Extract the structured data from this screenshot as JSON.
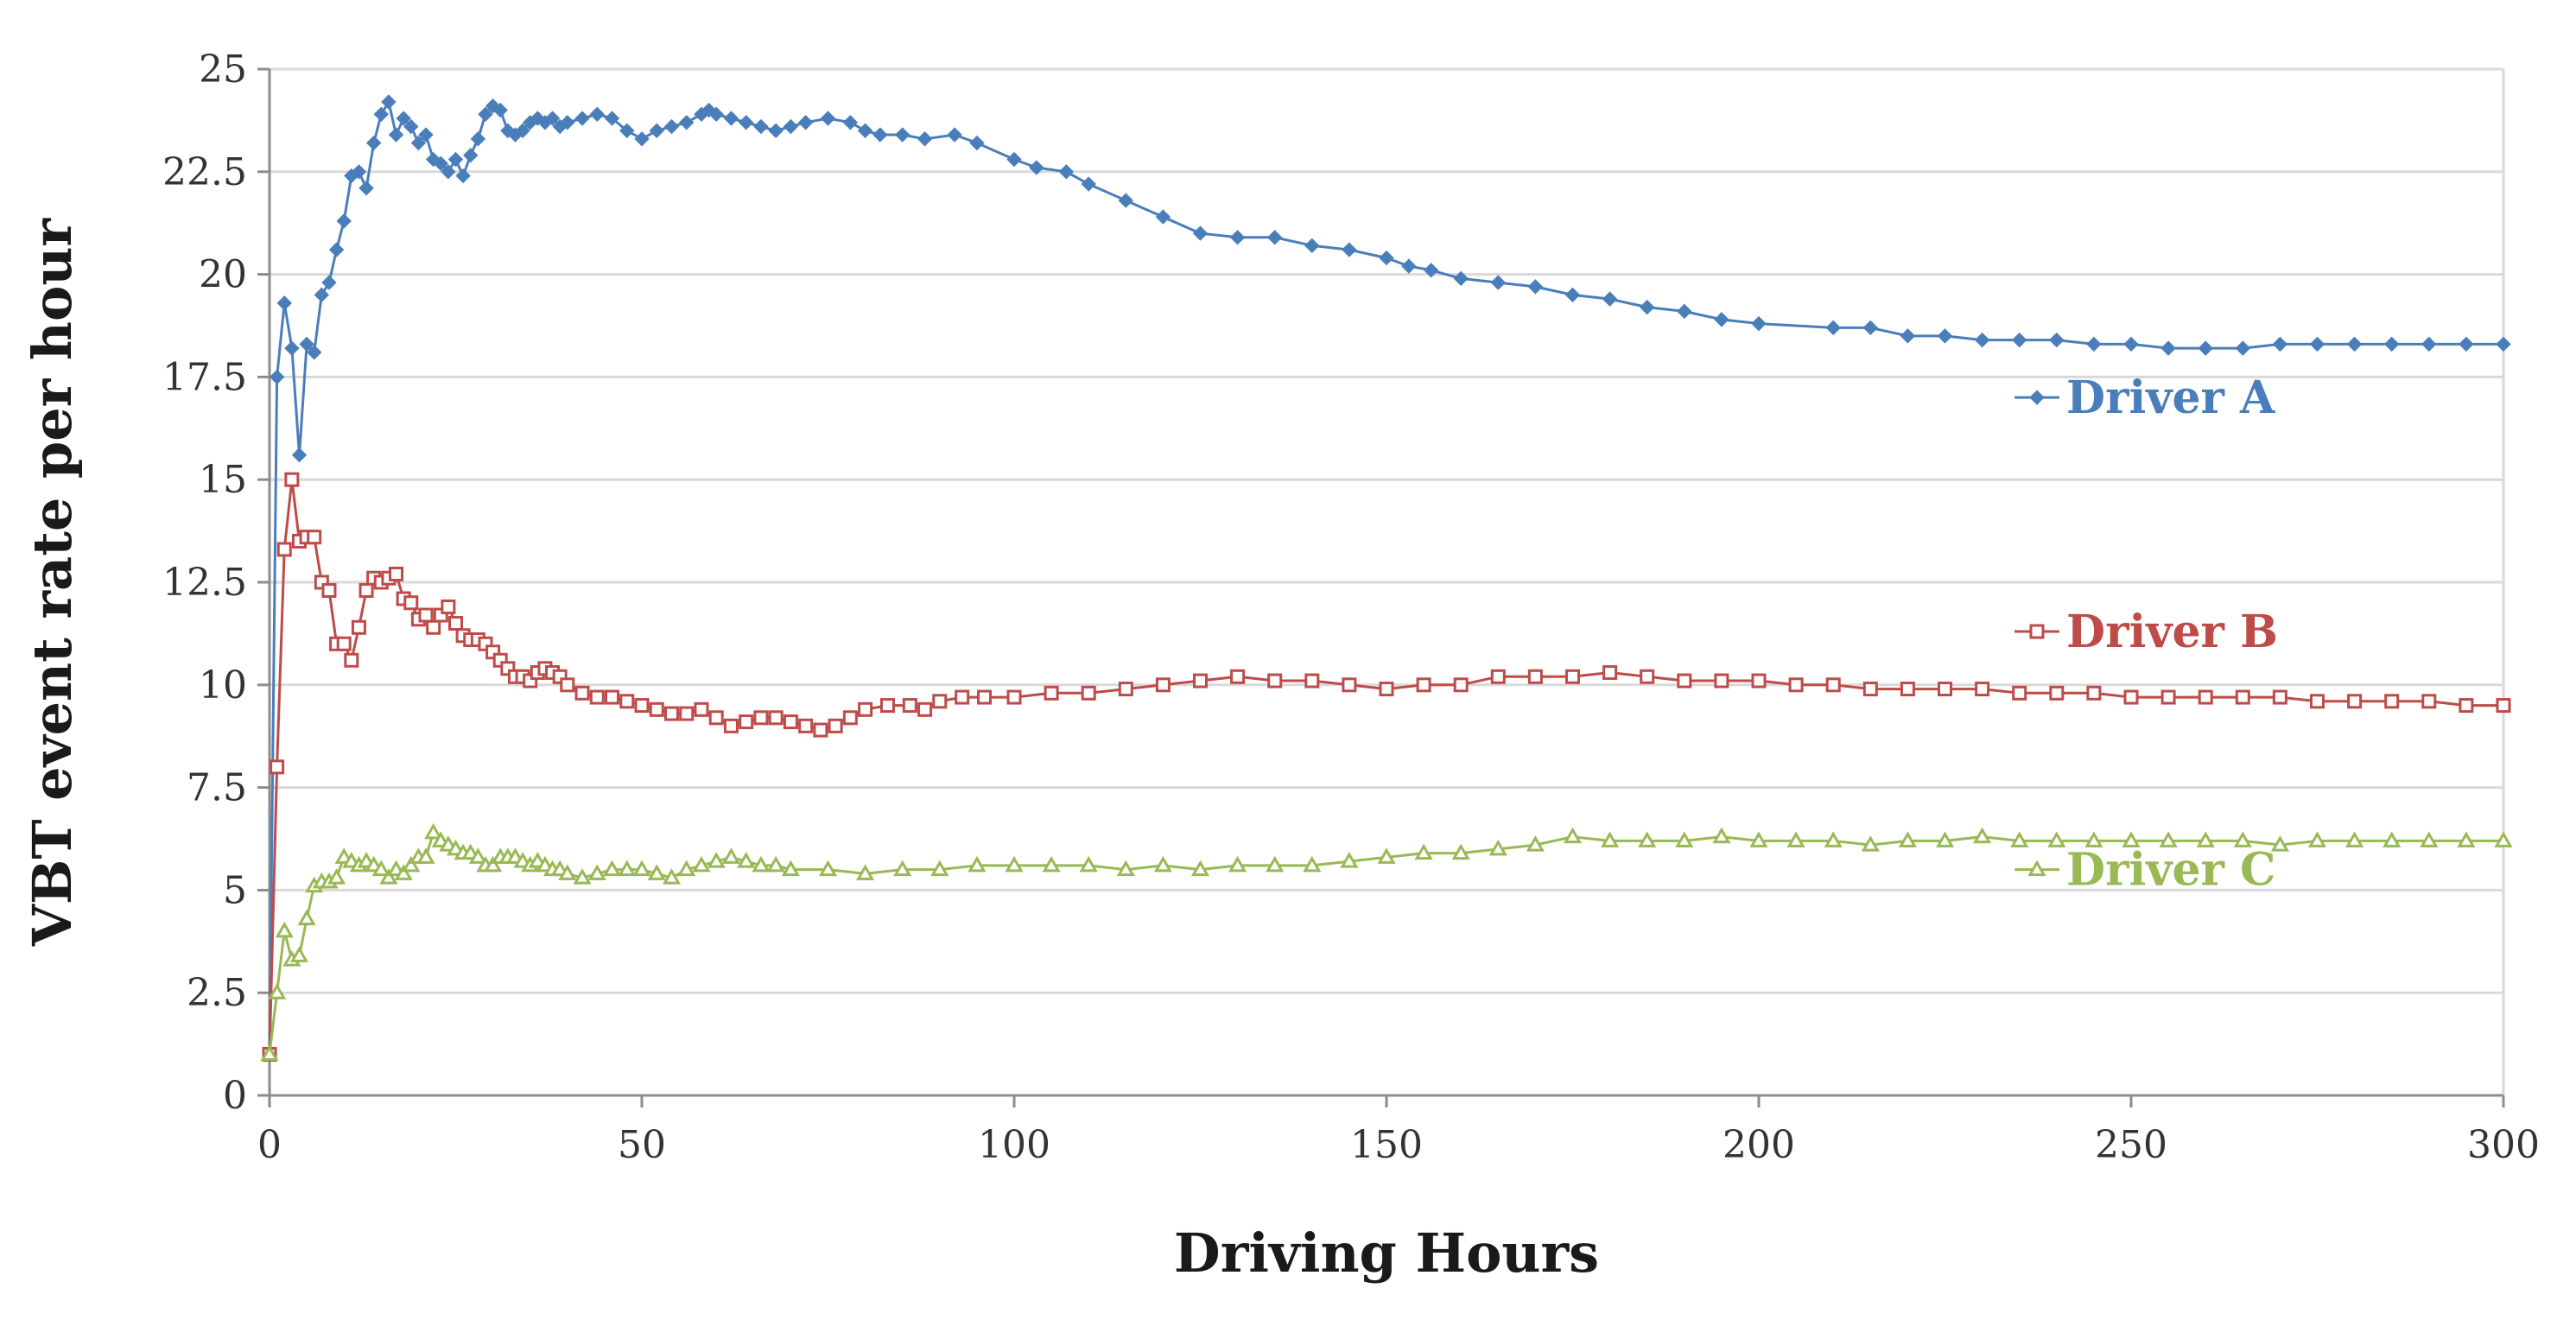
{
  "chart_data": {
    "type": "line",
    "title": "",
    "xlabel": "Driving Hours",
    "ylabel": "VBT event rate per hour",
    "xlim": [
      0,
      300
    ],
    "ylim": [
      0,
      25
    ],
    "xticks": [
      "0",
      "50",
      "100",
      "150",
      "200",
      "250",
      "300"
    ],
    "yticks": [
      "0",
      "2.5",
      "5",
      "7.5",
      "10",
      "12.5",
      "15",
      "17.5",
      "20",
      "22.5",
      "25"
    ],
    "grid": "horizontal",
    "legend": "inline-right",
    "series": [
      {
        "name": "Driver A",
        "color": "#4a7ebb",
        "marker": "diamond",
        "points": [
          [
            0,
            1
          ],
          [
            1,
            17.5
          ],
          [
            2,
            19.3
          ],
          [
            3,
            18.2
          ],
          [
            4,
            15.6
          ],
          [
            5,
            18.3
          ],
          [
            6,
            18.1
          ],
          [
            7,
            19.5
          ],
          [
            8,
            19.8
          ],
          [
            9,
            20.6
          ],
          [
            10,
            21.3
          ],
          [
            11,
            22.4
          ],
          [
            12,
            22.5
          ],
          [
            13,
            22.1
          ],
          [
            14,
            23.2
          ],
          [
            15,
            23.9
          ],
          [
            16,
            24.2
          ],
          [
            17,
            23.4
          ],
          [
            18,
            23.8
          ],
          [
            19,
            23.6
          ],
          [
            20,
            23.2
          ],
          [
            21,
            23.4
          ],
          [
            22,
            22.8
          ],
          [
            23,
            22.7
          ],
          [
            24,
            22.5
          ],
          [
            25,
            22.8
          ],
          [
            26,
            22.4
          ],
          [
            27,
            22.9
          ],
          [
            28,
            23.3
          ],
          [
            29,
            23.9
          ],
          [
            30,
            24.1
          ],
          [
            31,
            24.0
          ],
          [
            32,
            23.5
          ],
          [
            33,
            23.4
          ],
          [
            34,
            23.5
          ],
          [
            35,
            23.7
          ],
          [
            36,
            23.8
          ],
          [
            37,
            23.7
          ],
          [
            38,
            23.8
          ],
          [
            39,
            23.6
          ],
          [
            40,
            23.7
          ],
          [
            42,
            23.8
          ],
          [
            44,
            23.9
          ],
          [
            46,
            23.8
          ],
          [
            48,
            23.5
          ],
          [
            50,
            23.3
          ],
          [
            52,
            23.5
          ],
          [
            54,
            23.6
          ],
          [
            56,
            23.7
          ],
          [
            58,
            23.9
          ],
          [
            59,
            24.0
          ],
          [
            60,
            23.9
          ],
          [
            62,
            23.8
          ],
          [
            64,
            23.7
          ],
          [
            66,
            23.6
          ],
          [
            68,
            23.5
          ],
          [
            70,
            23.6
          ],
          [
            72,
            23.7
          ],
          [
            75,
            23.8
          ],
          [
            78,
            23.7
          ],
          [
            80,
            23.5
          ],
          [
            82,
            23.4
          ],
          [
            85,
            23.4
          ],
          [
            88,
            23.3
          ],
          [
            92,
            23.4
          ],
          [
            95,
            23.2
          ],
          [
            100,
            22.8
          ],
          [
            103,
            22.6
          ],
          [
            107,
            22.5
          ],
          [
            110,
            22.2
          ],
          [
            115,
            21.8
          ],
          [
            120,
            21.4
          ],
          [
            125,
            21.0
          ],
          [
            130,
            20.9
          ],
          [
            135,
            20.9
          ],
          [
            140,
            20.7
          ],
          [
            145,
            20.6
          ],
          [
            150,
            20.4
          ],
          [
            153,
            20.2
          ],
          [
            156,
            20.1
          ],
          [
            160,
            19.9
          ],
          [
            165,
            19.8
          ],
          [
            170,
            19.7
          ],
          [
            175,
            19.5
          ],
          [
            180,
            19.4
          ],
          [
            185,
            19.2
          ],
          [
            190,
            19.1
          ],
          [
            195,
            18.9
          ],
          [
            200,
            18.8
          ],
          [
            210,
            18.7
          ],
          [
            215,
            18.7
          ],
          [
            220,
            18.5
          ],
          [
            225,
            18.5
          ],
          [
            230,
            18.4
          ],
          [
            235,
            18.4
          ],
          [
            240,
            18.4
          ],
          [
            245,
            18.3
          ],
          [
            250,
            18.3
          ],
          [
            255,
            18.2
          ],
          [
            260,
            18.2
          ],
          [
            265,
            18.2
          ],
          [
            270,
            18.3
          ],
          [
            275,
            18.3
          ],
          [
            280,
            18.3
          ],
          [
            285,
            18.3
          ],
          [
            290,
            18.3
          ],
          [
            295,
            18.3
          ],
          [
            300,
            18.3
          ]
        ]
      },
      {
        "name": "Driver B",
        "color": "#be4b48",
        "marker": "square",
        "points": [
          [
            0,
            1
          ],
          [
            1,
            8.0
          ],
          [
            2,
            13.3
          ],
          [
            3,
            15.0
          ],
          [
            4,
            13.5
          ],
          [
            5,
            13.6
          ],
          [
            6,
            13.6
          ],
          [
            7,
            12.5
          ],
          [
            8,
            12.3
          ],
          [
            9,
            11.0
          ],
          [
            10,
            11.0
          ],
          [
            11,
            10.6
          ],
          [
            12,
            11.4
          ],
          [
            13,
            12.3
          ],
          [
            14,
            12.6
          ],
          [
            15,
            12.5
          ],
          [
            16,
            12.6
          ],
          [
            17,
            12.7
          ],
          [
            18,
            12.1
          ],
          [
            19,
            12.0
          ],
          [
            20,
            11.6
          ],
          [
            21,
            11.7
          ],
          [
            22,
            11.4
          ],
          [
            23,
            11.7
          ],
          [
            24,
            11.9
          ],
          [
            25,
            11.5
          ],
          [
            26,
            11.2
          ],
          [
            27,
            11.1
          ],
          [
            28,
            11.1
          ],
          [
            29,
            11.0
          ],
          [
            30,
            10.8
          ],
          [
            31,
            10.6
          ],
          [
            32,
            10.4
          ],
          [
            33,
            10.2
          ],
          [
            34,
            10.2
          ],
          [
            35,
            10.1
          ],
          [
            36,
            10.3
          ],
          [
            37,
            10.4
          ],
          [
            38,
            10.3
          ],
          [
            39,
            10.2
          ],
          [
            40,
            10.0
          ],
          [
            42,
            9.8
          ],
          [
            44,
            9.7
          ],
          [
            46,
            9.7
          ],
          [
            48,
            9.6
          ],
          [
            50,
            9.5
          ],
          [
            52,
            9.4
          ],
          [
            54,
            9.3
          ],
          [
            56,
            9.3
          ],
          [
            58,
            9.4
          ],
          [
            60,
            9.2
          ],
          [
            62,
            9.0
          ],
          [
            64,
            9.1
          ],
          [
            66,
            9.2
          ],
          [
            68,
            9.2
          ],
          [
            70,
            9.1
          ],
          [
            72,
            9.0
          ],
          [
            74,
            8.9
          ],
          [
            76,
            9.0
          ],
          [
            78,
            9.2
          ],
          [
            80,
            9.4
          ],
          [
            83,
            9.5
          ],
          [
            86,
            9.5
          ],
          [
            88,
            9.4
          ],
          [
            90,
            9.6
          ],
          [
            93,
            9.7
          ],
          [
            96,
            9.7
          ],
          [
            100,
            9.7
          ],
          [
            105,
            9.8
          ],
          [
            110,
            9.8
          ],
          [
            115,
            9.9
          ],
          [
            120,
            10.0
          ],
          [
            125,
            10.1
          ],
          [
            130,
            10.2
          ],
          [
            135,
            10.1
          ],
          [
            140,
            10.1
          ],
          [
            145,
            10.0
          ],
          [
            150,
            9.9
          ],
          [
            155,
            10.0
          ],
          [
            160,
            10.0
          ],
          [
            165,
            10.2
          ],
          [
            170,
            10.2
          ],
          [
            175,
            10.2
          ],
          [
            180,
            10.3
          ],
          [
            185,
            10.2
          ],
          [
            190,
            10.1
          ],
          [
            195,
            10.1
          ],
          [
            200,
            10.1
          ],
          [
            205,
            10.0
          ],
          [
            210,
            10.0
          ],
          [
            215,
            9.9
          ],
          [
            220,
            9.9
          ],
          [
            225,
            9.9
          ],
          [
            230,
            9.9
          ],
          [
            235,
            9.8
          ],
          [
            240,
            9.8
          ],
          [
            245,
            9.8
          ],
          [
            250,
            9.7
          ],
          [
            255,
            9.7
          ],
          [
            260,
            9.7
          ],
          [
            265,
            9.7
          ],
          [
            270,
            9.7
          ],
          [
            275,
            9.6
          ],
          [
            280,
            9.6
          ],
          [
            285,
            9.6
          ],
          [
            290,
            9.6
          ],
          [
            295,
            9.5
          ],
          [
            300,
            9.5
          ]
        ]
      },
      {
        "name": "Driver C",
        "color": "#98b954",
        "marker": "triangle",
        "points": [
          [
            0,
            1
          ],
          [
            1,
            2.5
          ],
          [
            2,
            4.0
          ],
          [
            3,
            3.3
          ],
          [
            4,
            3.4
          ],
          [
            5,
            4.3
          ],
          [
            6,
            5.1
          ],
          [
            7,
            5.2
          ],
          [
            8,
            5.2
          ],
          [
            9,
            5.3
          ],
          [
            10,
            5.8
          ],
          [
            11,
            5.7
          ],
          [
            12,
            5.6
          ],
          [
            13,
            5.7
          ],
          [
            14,
            5.6
          ],
          [
            15,
            5.5
          ],
          [
            16,
            5.3
          ],
          [
            17,
            5.5
          ],
          [
            18,
            5.4
          ],
          [
            19,
            5.6
          ],
          [
            20,
            5.8
          ],
          [
            21,
            5.8
          ],
          [
            22,
            6.4
          ],
          [
            23,
            6.2
          ],
          [
            24,
            6.1
          ],
          [
            25,
            6.0
          ],
          [
            26,
            5.9
          ],
          [
            27,
            5.9
          ],
          [
            28,
            5.8
          ],
          [
            29,
            5.6
          ],
          [
            30,
            5.6
          ],
          [
            31,
            5.8
          ],
          [
            32,
            5.8
          ],
          [
            33,
            5.8
          ],
          [
            34,
            5.7
          ],
          [
            35,
            5.6
          ],
          [
            36,
            5.7
          ],
          [
            37,
            5.6
          ],
          [
            38,
            5.5
          ],
          [
            39,
            5.5
          ],
          [
            40,
            5.4
          ],
          [
            42,
            5.3
          ],
          [
            44,
            5.4
          ],
          [
            46,
            5.5
          ],
          [
            48,
            5.5
          ],
          [
            50,
            5.5
          ],
          [
            52,
            5.4
          ],
          [
            54,
            5.3
          ],
          [
            56,
            5.5
          ],
          [
            58,
            5.6
          ],
          [
            60,
            5.7
          ],
          [
            62,
            5.8
          ],
          [
            64,
            5.7
          ],
          [
            66,
            5.6
          ],
          [
            68,
            5.6
          ],
          [
            70,
            5.5
          ],
          [
            75,
            5.5
          ],
          [
            80,
            5.4
          ],
          [
            85,
            5.5
          ],
          [
            90,
            5.5
          ],
          [
            95,
            5.6
          ],
          [
            100,
            5.6
          ],
          [
            105,
            5.6
          ],
          [
            110,
            5.6
          ],
          [
            115,
            5.5
          ],
          [
            120,
            5.6
          ],
          [
            125,
            5.5
          ],
          [
            130,
            5.6
          ],
          [
            135,
            5.6
          ],
          [
            140,
            5.6
          ],
          [
            145,
            5.7
          ],
          [
            150,
            5.8
          ],
          [
            155,
            5.9
          ],
          [
            160,
            5.9
          ],
          [
            165,
            6.0
          ],
          [
            170,
            6.1
          ],
          [
            175,
            6.3
          ],
          [
            180,
            6.2
          ],
          [
            185,
            6.2
          ],
          [
            190,
            6.2
          ],
          [
            195,
            6.3
          ],
          [
            200,
            6.2
          ],
          [
            205,
            6.2
          ],
          [
            210,
            6.2
          ],
          [
            215,
            6.1
          ],
          [
            220,
            6.2
          ],
          [
            225,
            6.2
          ],
          [
            230,
            6.3
          ],
          [
            235,
            6.2
          ],
          [
            240,
            6.2
          ],
          [
            245,
            6.2
          ],
          [
            250,
            6.2
          ],
          [
            255,
            6.2
          ],
          [
            260,
            6.2
          ],
          [
            265,
            6.2
          ],
          [
            270,
            6.1
          ],
          [
            275,
            6.2
          ],
          [
            280,
            6.2
          ],
          [
            285,
            6.2
          ],
          [
            290,
            6.2
          ],
          [
            295,
            6.2
          ],
          [
            300,
            6.2
          ]
        ]
      }
    ]
  }
}
